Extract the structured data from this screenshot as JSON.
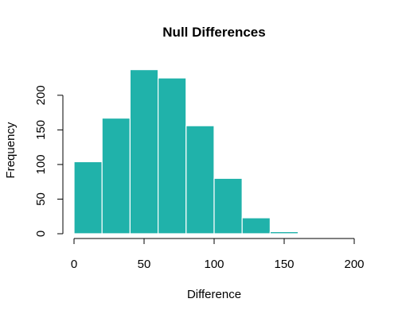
{
  "chart_data": {
    "type": "bar",
    "subtype": "histogram",
    "title": "Null Differences",
    "xlabel": "Difference",
    "ylabel": "Frequency",
    "bin_edges": [
      0,
      20,
      40,
      60,
      80,
      100,
      120,
      140,
      160
    ],
    "values": [
      104,
      167,
      237,
      225,
      156,
      80,
      23,
      3
    ],
    "xlim": [
      0,
      200
    ],
    "ylim": [
      0,
      240
    ],
    "x_ticks": [
      0,
      50,
      100,
      150,
      200
    ],
    "y_ticks": [
      0,
      50,
      100,
      150,
      200
    ],
    "grid": false,
    "bar_color": "#20B2AA",
    "bar_edge_color": "#ffffff"
  }
}
